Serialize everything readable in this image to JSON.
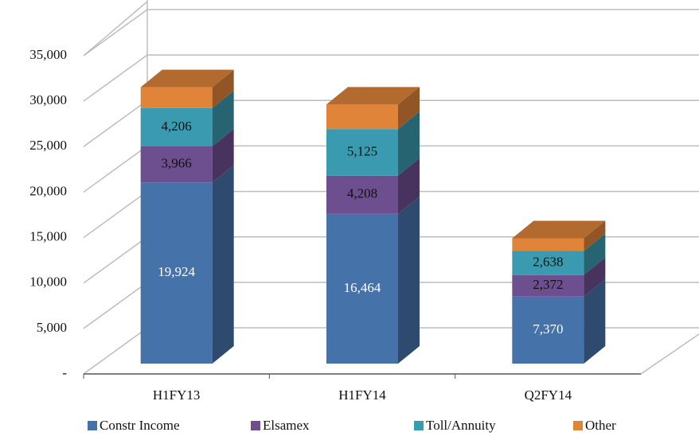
{
  "chart_data": {
    "type": "bar3d_stacked",
    "categories": [
      "H1FY13",
      "H1FY14",
      "Q2FY14"
    ],
    "series": [
      {
        "name": "Constr Income",
        "color": "#4672aa",
        "values": [
          19924,
          16464,
          7370
        ],
        "value_labels": [
          "19,924",
          "16,464",
          "7,370"
        ]
      },
      {
        "name": "Elsamex",
        "color": "#6d4f8f",
        "values": [
          3966,
          4208,
          2372
        ],
        "value_labels": [
          "3,966",
          "4,208",
          "2,372"
        ]
      },
      {
        "name": "Toll/Annuity",
        "color": "#3a9ab0",
        "values": [
          4206,
          5125,
          2638
        ],
        "value_labels": [
          "4,206",
          "5,125",
          "2,638"
        ]
      },
      {
        "name": "Other",
        "color": "#e0843a",
        "values": [
          2300,
          2700,
          1400
        ]
      }
    ],
    "ylim": [
      0,
      35000
    ],
    "yticks": [
      {
        "value": 0,
        "label": "-"
      },
      {
        "value": 5000,
        "label": "5,000"
      },
      {
        "value": 10000,
        "label": "10,000"
      },
      {
        "value": 15000,
        "label": "15,000"
      },
      {
        "value": 20000,
        "label": "20,000"
      },
      {
        "value": 25000,
        "label": "25,000"
      },
      {
        "value": 30000,
        "label": "30,000"
      },
      {
        "value": 35000,
        "label": "35,000"
      }
    ],
    "grid": true,
    "legend": "bottom"
  }
}
